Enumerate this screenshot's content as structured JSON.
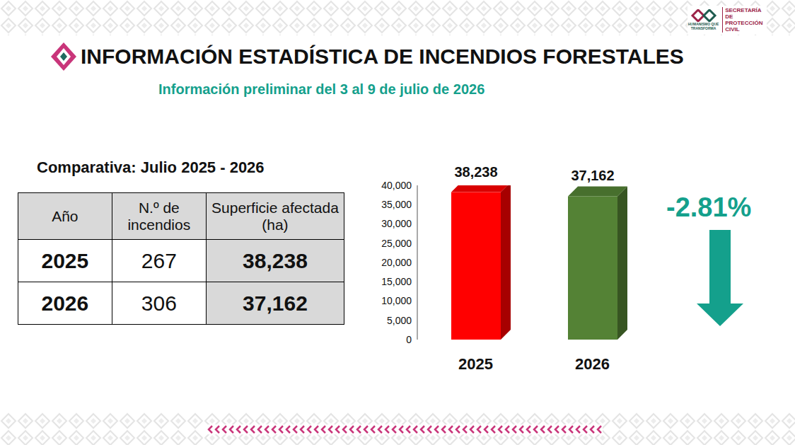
{
  "header": {
    "title": "INFORMACIÓN ESTADÍSTICA DE INCENDIOS FORESTALES",
    "subtitle": "Información preliminar del 3 al 9 de julio de 2026"
  },
  "logo": {
    "secretaria": "SECRETARÍA DE PROTECCIÓN CIVIL",
    "motto": "HUMANISMO QUE TRANSFORMA"
  },
  "table": {
    "title": "Comparativa: Julio 2025 - 2026",
    "columns": [
      "Año",
      "N.º de incendios",
      "Superficie afectada (ha)"
    ],
    "rows": [
      [
        "2025",
        "267",
        "38,238"
      ],
      [
        "2026",
        "306",
        "37,162"
      ]
    ]
  },
  "chart_data": {
    "type": "bar",
    "categories": [
      "2025",
      "2026"
    ],
    "values": [
      38238,
      37162
    ],
    "value_labels": [
      "38,238",
      "37,162"
    ],
    "colors": [
      "#ff0000",
      "#548235"
    ],
    "data_labels": true,
    "grid": false,
    "ylim": [
      0,
      40000
    ],
    "yticks": [
      0,
      {
        "value": 5000,
        "label": "5,000"
      },
      {
        "value": 10000,
        "label": "10,000"
      },
      {
        "value": 15000,
        "label": "15,000"
      },
      {
        "value": 20000,
        "label": "20,000"
      },
      {
        "value": 25000,
        "label": "25,000"
      },
      {
        "value": 30000,
        "label": "30,000"
      },
      {
        "value": 35000,
        "label": "35,000"
      },
      {
        "value": 40000,
        "label": "40,000"
      }
    ],
    "annotation": "-2.81%"
  }
}
